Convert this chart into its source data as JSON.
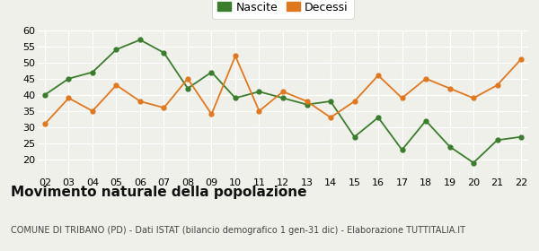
{
  "years": [
    "02",
    "03",
    "04",
    "05",
    "06",
    "07",
    "08",
    "09",
    "10",
    "11",
    "12",
    "13",
    "14",
    "15",
    "16",
    "17",
    "18",
    "19",
    "20",
    "21",
    "22"
  ],
  "nascite": [
    40,
    45,
    47,
    54,
    57,
    53,
    42,
    47,
    39,
    41,
    39,
    37,
    38,
    27,
    33,
    23,
    32,
    24,
    19,
    26,
    27
  ],
  "decessi": [
    31,
    39,
    35,
    43,
    38,
    36,
    45,
    34,
    52,
    35,
    41,
    38,
    33,
    38,
    46,
    39,
    45,
    42,
    39,
    43,
    51
  ],
  "nascite_color": "#3a7d2c",
  "decessi_color": "#e07820",
  "title": "Movimento naturale della popolazione",
  "subtitle": "COMUNE DI TRIBANO (PD) - Dati ISTAT (bilancio demografico 1 gen-31 dic) - Elaborazione TUTTITALIA.IT",
  "ylim": [
    15,
    60
  ],
  "yticks": [
    20,
    25,
    30,
    35,
    40,
    45,
    50,
    55,
    60
  ],
  "background_color": "#f0f0eb",
  "legend_nascite": "Nascite",
  "legend_decessi": "Decessi",
  "grid_color": "#ffffff",
  "title_fontsize": 11,
  "subtitle_fontsize": 7,
  "tick_fontsize": 8
}
